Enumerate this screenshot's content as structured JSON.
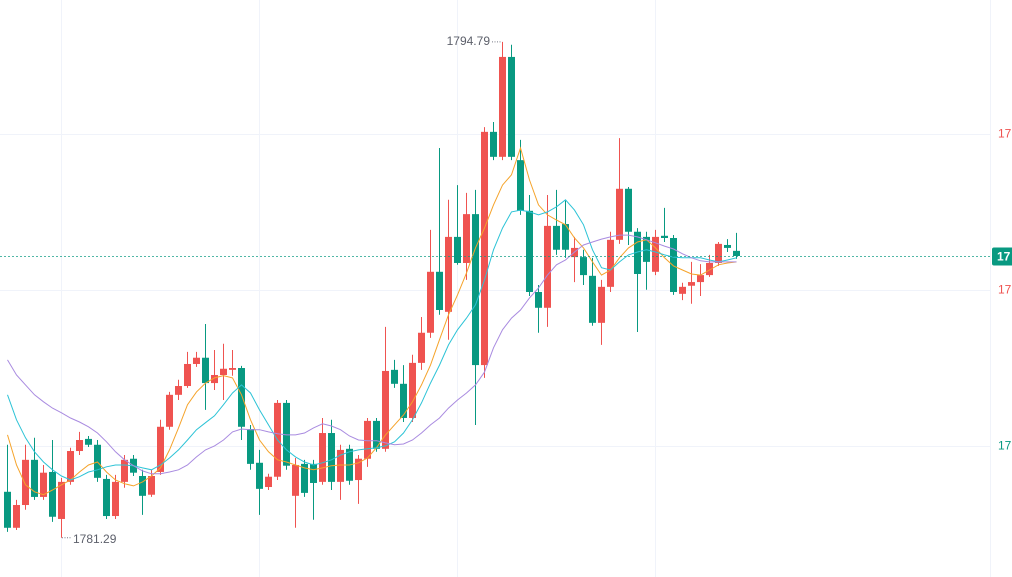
{
  "chart_data": {
    "type": "candlestick",
    "up_color": "#ef5350",
    "down_color": "#089981",
    "ylim": [
      1780.22,
      1795.93
    ],
    "yticks": [
      {
        "value": 1792.28,
        "label": "17",
        "color": "#ef5350"
      },
      {
        "value": 1788.04,
        "label": "17",
        "color": "#ef5350"
      },
      {
        "value": 1783.79,
        "label": "17",
        "color": "#089981"
      }
    ],
    "grid": true,
    "last_price": {
      "value": 1788.96,
      "label": "17",
      "color": "#089981"
    },
    "open": [
      1782.54,
      1781.56,
      1782.18,
      1783.41,
      1782.4,
      1783.08,
      1781.8,
      1782.81,
      1783.65,
      1783.98,
      1783.82,
      1782.89,
      1781.88,
      1782.81,
      1783.44,
      1782.97,
      1782.46,
      1783.08,
      1784.31,
      1785.18,
      1785.42,
      1786.02,
      1786.19,
      1785.5,
      1785.72,
      1785.86,
      1785.91,
      1784.25,
      1783.33,
      1782.67,
      1782.95,
      1784.96,
      1782.43,
      1783.3,
      1783.3,
      1782.81,
      1784.14,
      1782.81,
      1783.71,
      1782.86,
      1783.44,
      1784.47,
      1783.71,
      1785.86,
      1785.48,
      1784.55,
      1786.05,
      1786.87,
      1788.53,
      1787.44,
      1789.48,
      1788.77,
      1790.1,
      1785.99,
      1792.34,
      1791.66,
      1794.38,
      1791.57,
      1790.19,
      1787.98,
      1787.55,
      1789.78,
      1789.83,
      1788.93,
      1788.93,
      1788.42,
      1787.14,
      1788.12,
      1789.4,
      1790.79,
      1789.62,
      1789.48,
      1788.53,
      1789.51,
      1789.45,
      1787.93,
      1788.15,
      1788.25,
      1788.44,
      1788.77,
      1789.26,
      1789.1
    ],
    "high": [
      1783.82,
      1782.32,
      1783.82,
      1784.01,
      1783.27,
      1783.95,
      1782.92,
      1783.74,
      1784.17,
      1784.06,
      1783.95,
      1783.0,
      1783.0,
      1783.54,
      1783.54,
      1783.14,
      1783.14,
      1784.5,
      1785.26,
      1785.59,
      1786.35,
      1786.35,
      1787.11,
      1786.4,
      1786.57,
      1786.4,
      1785.97,
      1784.36,
      1783.68,
      1783.03,
      1785.04,
      1785.04,
      1783.46,
      1783.41,
      1783.41,
      1784.55,
      1784.5,
      1783.82,
      1783.82,
      1783.54,
      1784.55,
      1784.55,
      1787.03,
      1786.13,
      1785.99,
      1786.27,
      1787.3,
      1789.67,
      1791.9,
      1790.49,
      1790.89,
      1790.68,
      1790.76,
      1792.47,
      1792.61,
      1794.79,
      1794.71,
      1792.12,
      1790.62,
      1788.17,
      1790.62,
      1790.76,
      1790.49,
      1789.48,
      1789.13,
      1788.91,
      1788.31,
      1789.62,
      1792.17,
      1790.84,
      1789.72,
      1789.62,
      1789.67,
      1790.27,
      1789.53,
      1788.23,
      1788.8,
      1788.74,
      1788.99,
      1789.34,
      1789.42,
      1789.59
    ],
    "low": [
      1781.45,
      1781.5,
      1782.05,
      1782.32,
      1782.32,
      1781.72,
      1781.29,
      1782.73,
      1783.54,
      1783.76,
      1782.81,
      1781.8,
      1781.8,
      1782.65,
      1782.97,
      1781.91,
      1782.4,
      1783.0,
      1784.23,
      1785.04,
      1785.37,
      1785.94,
      1784.77,
      1785.31,
      1785.04,
      1785.7,
      1783.95,
      1783.14,
      1781.91,
      1782.59,
      1782.86,
      1783.14,
      1781.56,
      1782.4,
      1781.78,
      1782.73,
      1782.59,
      1782.32,
      1782.73,
      1782.21,
      1783.22,
      1783.63,
      1783.63,
      1785.37,
      1784.44,
      1784.44,
      1785.86,
      1786.73,
      1787.36,
      1786.68,
      1788.72,
      1788.31,
      1784.36,
      1785.64,
      1791.57,
      1791.57,
      1791.57,
      1790.08,
      1787.87,
      1786.87,
      1787.03,
      1788.99,
      1788.91,
      1788.25,
      1788.17,
      1787.06,
      1786.54,
      1787.98,
      1789.29,
      1789.26,
      1786.89,
      1788.04,
      1788.44,
      1789.34,
      1787.9,
      1787.76,
      1787.66,
      1787.87,
      1788.39,
      1788.69,
      1789.07,
      1788.88
    ],
    "close": [
      1781.56,
      1782.18,
      1783.41,
      1782.4,
      1783.06,
      1781.86,
      1782.81,
      1783.65,
      1783.95,
      1783.82,
      1782.92,
      1781.88,
      1782.81,
      1783.41,
      1783.06,
      1782.43,
      1782.97,
      1784.31,
      1785.18,
      1785.42,
      1786.02,
      1786.19,
      1785.5,
      1785.72,
      1785.89,
      1785.91,
      1784.31,
      1783.3,
      1782.62,
      1782.95,
      1784.96,
      1783.25,
      1783.27,
      1782.51,
      1782.78,
      1784.14,
      1782.81,
      1783.68,
      1782.84,
      1783.44,
      1784.47,
      1783.71,
      1785.83,
      1785.48,
      1784.55,
      1786.05,
      1786.87,
      1788.53,
      1787.49,
      1789.48,
      1788.77,
      1790.1,
      1785.99,
      1792.34,
      1791.66,
      1794.38,
      1791.66,
      1790.19,
      1787.98,
      1787.55,
      1789.78,
      1789.13,
      1789.13,
      1789.18,
      1788.44,
      1787.14,
      1788.12,
      1789.4,
      1790.79,
      1789.62,
      1788.47,
      1788.8,
      1789.48,
      1789.45,
      1787.98,
      1788.12,
      1788.25,
      1788.44,
      1788.77,
      1789.29,
      1789.18,
      1788.96
    ],
    "series": [
      {
        "color": "#f5a32a",
        "values": [
          1784.09,
          1783.27,
          1782.73,
          1782.54,
          1782.46,
          1782.59,
          1782.73,
          1782.86,
          1783.08,
          1783.27,
          1783.35,
          1783.08,
          1782.86,
          1782.76,
          1782.7,
          1782.81,
          1782.97,
          1783.19,
          1783.68,
          1784.28,
          1784.91,
          1785.26,
          1785.5,
          1785.64,
          1785.7,
          1785.64,
          1785.18,
          1784.5,
          1783.95,
          1783.63,
          1783.41,
          1783.35,
          1783.27,
          1783.19,
          1783.14,
          1783.19,
          1783.25,
          1783.27,
          1783.27,
          1783.33,
          1783.46,
          1783.74,
          1784.09,
          1784.36,
          1784.63,
          1784.99,
          1785.45,
          1785.99,
          1786.68,
          1787.36,
          1787.9,
          1788.5,
          1789.18,
          1789.72,
          1790.35,
          1790.89,
          1791.17,
          1791.9,
          1791.03,
          1790.35,
          1790.08,
          1789.94,
          1789.81,
          1789.45,
          1789.18,
          1788.8,
          1788.44,
          1788.58,
          1788.91,
          1789.18,
          1789.34,
          1789.4,
          1789.18,
          1788.91,
          1788.69,
          1788.58,
          1788.47,
          1788.44,
          1788.58,
          1788.72,
          1788.77,
          1788.8
        ]
      },
      {
        "color": "#2cc3d6",
        "values": [
          1785.18,
          1784.5,
          1784.01,
          1783.63,
          1783.35,
          1783.14,
          1782.97,
          1782.86,
          1782.95,
          1783.08,
          1783.14,
          1783.22,
          1783.27,
          1783.27,
          1783.25,
          1783.19,
          1783.14,
          1783.27,
          1783.46,
          1783.68,
          1783.95,
          1784.23,
          1784.42,
          1784.61,
          1784.91,
          1785.23,
          1785.45,
          1785.23,
          1784.77,
          1784.36,
          1783.95,
          1783.68,
          1783.49,
          1783.35,
          1783.27,
          1783.33,
          1783.41,
          1783.54,
          1783.63,
          1783.68,
          1783.71,
          1783.74,
          1783.79,
          1783.9,
          1784.14,
          1784.5,
          1784.96,
          1785.5,
          1785.99,
          1786.54,
          1786.95,
          1787.27,
          1787.63,
          1788.31,
          1789.13,
          1789.72,
          1790.16,
          1790.21,
          1790.16,
          1790.08,
          1790.16,
          1790.3,
          1790.49,
          1790.21,
          1789.81,
          1789.13,
          1788.64,
          1788.58,
          1788.8,
          1788.99,
          1789.07,
          1789.13,
          1789.07,
          1788.99,
          1788.93,
          1788.91,
          1788.91,
          1788.91,
          1788.85,
          1788.8,
          1788.85,
          1788.91
        ]
      },
      {
        "color": "#a98be0",
        "values": [
          1786.13,
          1785.72,
          1785.45,
          1785.18,
          1784.99,
          1784.82,
          1784.69,
          1784.55,
          1784.44,
          1784.31,
          1784.14,
          1783.9,
          1783.63,
          1783.41,
          1783.25,
          1783.11,
          1783.03,
          1783.03,
          1783.08,
          1783.14,
          1783.27,
          1783.49,
          1783.68,
          1783.79,
          1783.95,
          1784.17,
          1784.25,
          1784.23,
          1784.23,
          1784.17,
          1784.12,
          1784.09,
          1784.09,
          1784.14,
          1784.28,
          1784.39,
          1784.33,
          1784.23,
          1784.06,
          1783.95,
          1783.93,
          1783.93,
          1783.87,
          1783.82,
          1783.84,
          1783.95,
          1784.14,
          1784.36,
          1784.55,
          1784.82,
          1785.04,
          1785.23,
          1785.45,
          1785.8,
          1786.46,
          1786.95,
          1787.27,
          1787.49,
          1787.82,
          1788.09,
          1788.44,
          1788.72,
          1788.85,
          1789.07,
          1789.26,
          1789.34,
          1789.42,
          1789.48,
          1789.53,
          1789.53,
          1789.48,
          1789.4,
          1789.32,
          1789.23,
          1789.15,
          1789.02,
          1788.91,
          1788.83,
          1788.8,
          1788.8,
          1788.8,
          1788.8
        ]
      }
    ]
  }
}
